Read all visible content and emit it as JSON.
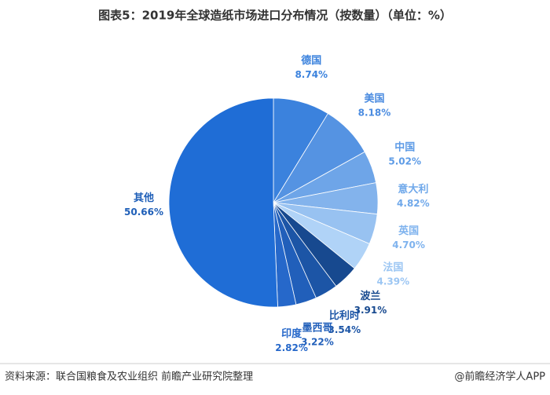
{
  "chart_data": {
    "type": "pie",
    "title": "图表5：2019年全球造纸市场进口分布情况（按数量）（单位：%）",
    "categories": [
      "德国",
      "美国",
      "中国",
      "意大利",
      "英国",
      "法国",
      "波兰",
      "比利时",
      "墨西哥",
      "印度",
      "其他"
    ],
    "values": [
      8.74,
      8.18,
      5.02,
      4.82,
      4.7,
      4.39,
      3.91,
      3.54,
      3.22,
      2.82,
      50.66
    ],
    "value_labels": [
      "8.74%",
      "8.18%",
      "5.02%",
      "4.82%",
      "4.70%",
      "4.39%",
      "3.91%",
      "3.54%",
      "3.22%",
      "2.82%",
      "50.66%"
    ],
    "colors": [
      "#3b82dd",
      "#5593e2",
      "#6ea5e8",
      "#83b3ec",
      "#98c2f1",
      "#b0d3f7",
      "#17498f",
      "#1c55a6",
      "#215fba",
      "#2668ca",
      "#1f6dd6"
    ],
    "label_colors": [
      "#3b82dd",
      "#4a8be0",
      "#5d9be6",
      "#6fa8ea",
      "#7fb3ee",
      "#9cc6f3",
      "#17498f",
      "#1c55a6",
      "#215fba",
      "#2668ca",
      "#1f5fb8"
    ]
  },
  "footer": {
    "source": "资料来源：联合国粮食及农业组织 前瞻产业研究院整理",
    "brand": "@前瞻经济学人APP"
  }
}
